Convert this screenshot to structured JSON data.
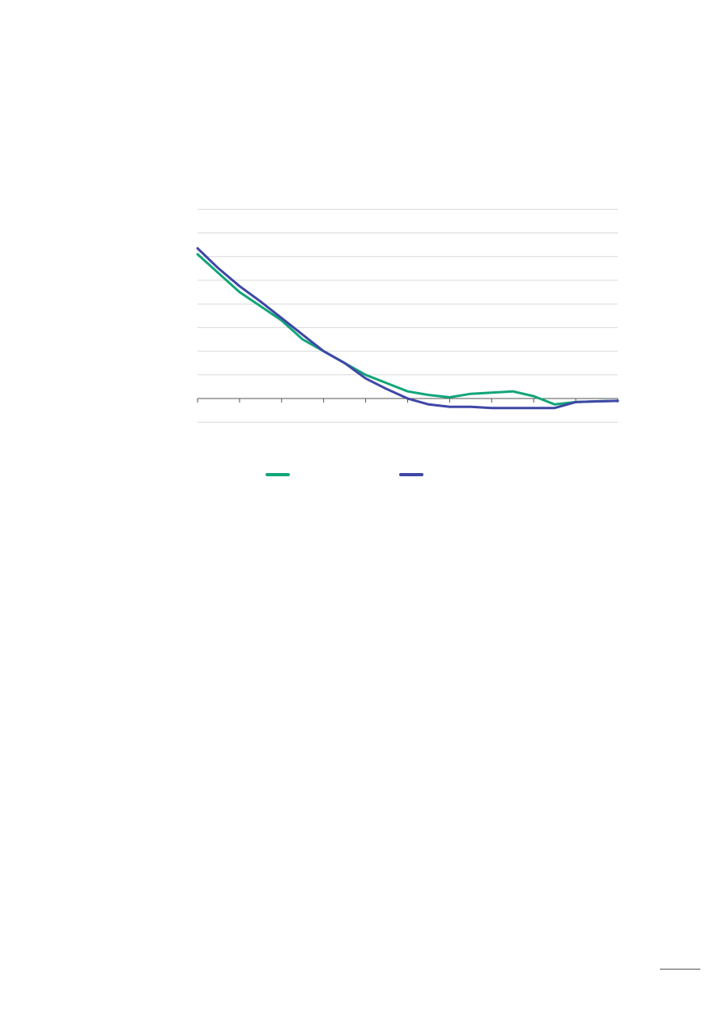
{
  "colors": {
    "series_a": "#13a57a",
    "series_b": "#3f47a6",
    "grid": "#d9d9d9",
    "axis": "#555555"
  },
  "chart_data": {
    "type": "line",
    "title": "",
    "xlabel": "",
    "ylabel": "",
    "ylim": [
      -1,
      8
    ],
    "x_tick_count": 11,
    "grid": true,
    "legend": "bottom",
    "x": [
      0,
      0.5,
      1,
      1.5,
      2,
      2.5,
      3,
      3.5,
      4,
      4.5,
      5,
      5.5,
      6,
      6.5,
      7,
      7.5,
      8,
      8.5,
      9,
      9.5,
      10
    ],
    "series": [
      {
        "name": "",
        "color_key": "series_a",
        "values": [
          6.1,
          5.3,
          4.5,
          3.9,
          3.3,
          2.5,
          2.0,
          1.5,
          1.0,
          0.65,
          0.3,
          0.15,
          0.05,
          0.2,
          0.25,
          0.3,
          0.1,
          -0.25,
          -0.15,
          -0.12,
          -0.1
        ]
      },
      {
        "name": "",
        "color_key": "series_b",
        "values": [
          6.35,
          5.5,
          4.75,
          4.1,
          3.4,
          2.7,
          2.0,
          1.5,
          0.85,
          0.4,
          0.0,
          -0.25,
          -0.35,
          -0.35,
          -0.4,
          -0.4,
          -0.4,
          -0.4,
          -0.15,
          -0.12,
          -0.1
        ]
      }
    ]
  }
}
